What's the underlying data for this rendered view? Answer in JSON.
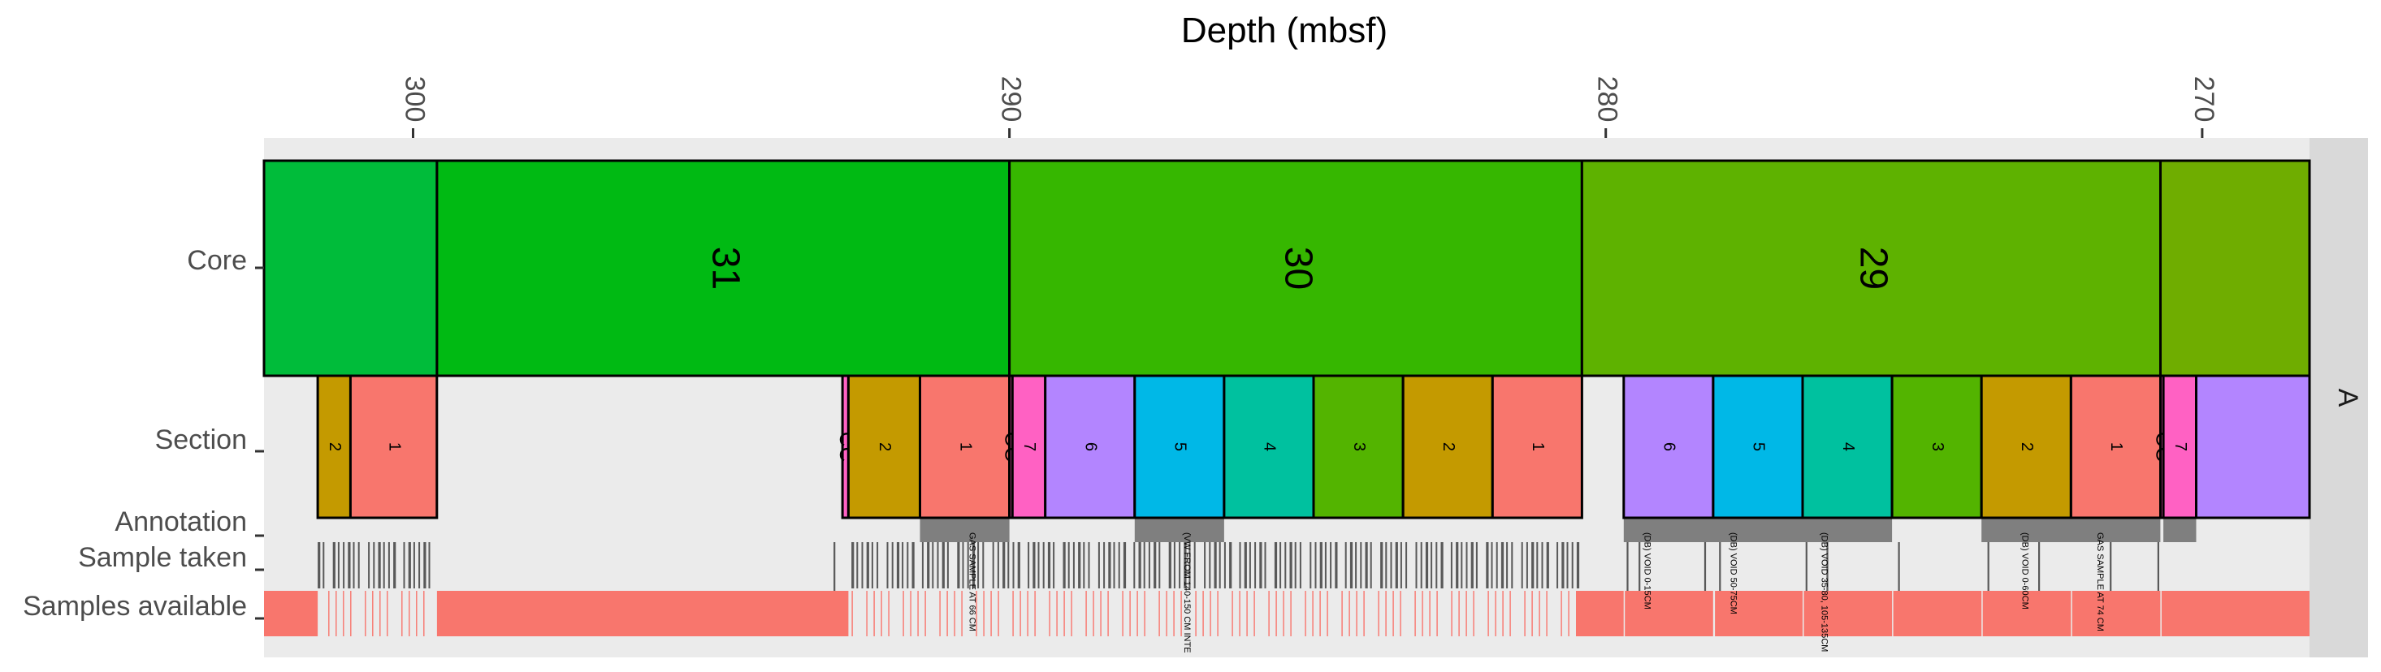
{
  "chart_data": {
    "type": "track-strip",
    "title": "Depth (mbsf)",
    "x_label": "Depth (mbsf)",
    "x_range": [
      302.5,
      268.2
    ],
    "x_ticks": [
      300,
      290,
      280,
      270
    ],
    "x_tick_labels": [
      "300",
      "290",
      "280",
      "270"
    ],
    "facet_label": "A",
    "track_labels": {
      "core": "Core",
      "section": "Section",
      "annotation": "Annotation",
      "sample_taken": "Sample taken",
      "samples_available": "Samples available"
    },
    "cores": [
      {
        "label": "",
        "from": 302.5,
        "to": 299.6,
        "color": "#00BC3A"
      },
      {
        "label": "31",
        "from": 299.6,
        "to": 290.0,
        "color": "#00BA13"
      },
      {
        "label": "30",
        "from": 290.0,
        "to": 280.4,
        "color": "#36B700"
      },
      {
        "label": "29",
        "from": 280.4,
        "to": 270.7,
        "color": "#5EB200"
      },
      {
        "label": "",
        "from": 270.7,
        "to": 268.2,
        "color": "#6FAD00"
      }
    ],
    "sections": [
      {
        "label": "2",
        "from": 301.6,
        "to": 301.05,
        "color": "#C49A00"
      },
      {
        "label": "1",
        "from": 301.05,
        "to": 299.6,
        "color": "#F8766D"
      },
      {
        "label": "CC",
        "from": 292.8,
        "to": 292.7,
        "color": "#FF61C3"
      },
      {
        "label": "2",
        "from": 292.7,
        "to": 291.5,
        "color": "#C49A00"
      },
      {
        "label": "1",
        "from": 291.5,
        "to": 290.0,
        "color": "#F8766D"
      },
      {
        "label": "CC",
        "from": 290.0,
        "to": 289.95,
        "color": "#FF61C3"
      },
      {
        "label": "7",
        "from": 289.95,
        "to": 289.4,
        "color": "#FF61C3"
      },
      {
        "label": "6",
        "from": 289.4,
        "to": 287.9,
        "color": "#B385FF"
      },
      {
        "label": "5",
        "from": 287.9,
        "to": 286.4,
        "color": "#00B8E7"
      },
      {
        "label": "4",
        "from": 286.4,
        "to": 284.9,
        "color": "#00C19F"
      },
      {
        "label": "3",
        "from": 284.9,
        "to": 283.4,
        "color": "#53B400"
      },
      {
        "label": "2",
        "from": 283.4,
        "to": 281.9,
        "color": "#C49A00"
      },
      {
        "label": "1",
        "from": 281.9,
        "to": 280.4,
        "color": "#F8766D"
      },
      {
        "label": "6",
        "from": 279.7,
        "to": 278.2,
        "color": "#B385FF"
      },
      {
        "label": "5",
        "from": 278.2,
        "to": 276.7,
        "color": "#00B8E7"
      },
      {
        "label": "4",
        "from": 276.7,
        "to": 275.2,
        "color": "#00C19F"
      },
      {
        "label": "3",
        "from": 275.2,
        "to": 273.7,
        "color": "#53B400"
      },
      {
        "label": "2",
        "from": 273.7,
        "to": 272.2,
        "color": "#C49A00"
      },
      {
        "label": "1",
        "from": 272.2,
        "to": 270.7,
        "color": "#F8766D"
      },
      {
        "label": "CC",
        "from": 270.7,
        "to": 270.65,
        "color": "#FF61C3"
      },
      {
        "label": "7",
        "from": 270.65,
        "to": 270.1,
        "color": "#FF61C3"
      },
      {
        "label": "",
        "from": 270.1,
        "to": 268.2,
        "color": "#B385FF"
      }
    ],
    "annotations": [
      {
        "text": "GAS SAMPLE AT 66 CM",
        "from": 291.5,
        "to": 290.0
      },
      {
        "text": "(VW FROM 140-150 CM INTE",
        "from": 287.9,
        "to": 286.4
      },
      {
        "text": "(DB) VOID 0-15CM",
        "from": 279.7,
        "to": 275.2
      },
      {
        "text": "(DB) VOID 50-75CM",
        "from": 279.7,
        "to": 275.2
      },
      {
        "text": "(DB) VOID 35-80, 105-135CM",
        "from": 279.7,
        "to": 275.2
      },
      {
        "text": "(DB) VOID 0-60CM",
        "from": 273.7,
        "to": 270.7
      },
      {
        "text": "GAS SAMPLE AT 74 CM",
        "from": 273.7,
        "to": 270.7
      }
    ],
    "annotation_bars": [
      {
        "from": 291.5,
        "to": 290.0
      },
      {
        "from": 287.9,
        "to": 286.4
      },
      {
        "from": 279.7,
        "to": 275.2
      },
      {
        "from": 273.7,
        "to": 270.7
      },
      {
        "from": 270.65,
        "to": 270.1
      }
    ],
    "samples_taken_ranges": [
      {
        "from": 301.6,
        "to": 299.65,
        "density": 0.55
      },
      {
        "from": 292.65,
        "to": 280.45,
        "density": 0.6
      }
    ],
    "samples_taken_isolated": [
      292.95,
      279.65,
      279.45,
      278.35,
      278.1,
      276.65,
      276.3,
      275.1,
      273.6,
      272.75,
      271.55,
      270.75
    ],
    "samples_available_blocks": [
      {
        "from": 302.5,
        "to": 301.6
      },
      {
        "from": 299.6,
        "to": 292.7
      },
      {
        "from": 280.5,
        "to": 279.7
      },
      {
        "from": 279.68,
        "to": 278.2
      },
      {
        "from": 278.17,
        "to": 276.7
      },
      {
        "from": 276.68,
        "to": 275.2
      },
      {
        "from": 275.18,
        "to": 273.7
      },
      {
        "from": 273.68,
        "to": 272.2
      },
      {
        "from": 272.18,
        "to": 270.7
      },
      {
        "from": 270.68,
        "to": 268.2
      }
    ],
    "samples_available_sparse": [
      {
        "from": 301.6,
        "to": 299.6
      },
      {
        "from": 292.7,
        "to": 280.5
      }
    ],
    "colors": {
      "panel_bg": "#EBEBEB",
      "strip_bg": "#D9D9D9",
      "annotation_bar": "#7F7F7F",
      "sample_taken": "#595959",
      "samples_available": "#F8766D"
    }
  }
}
